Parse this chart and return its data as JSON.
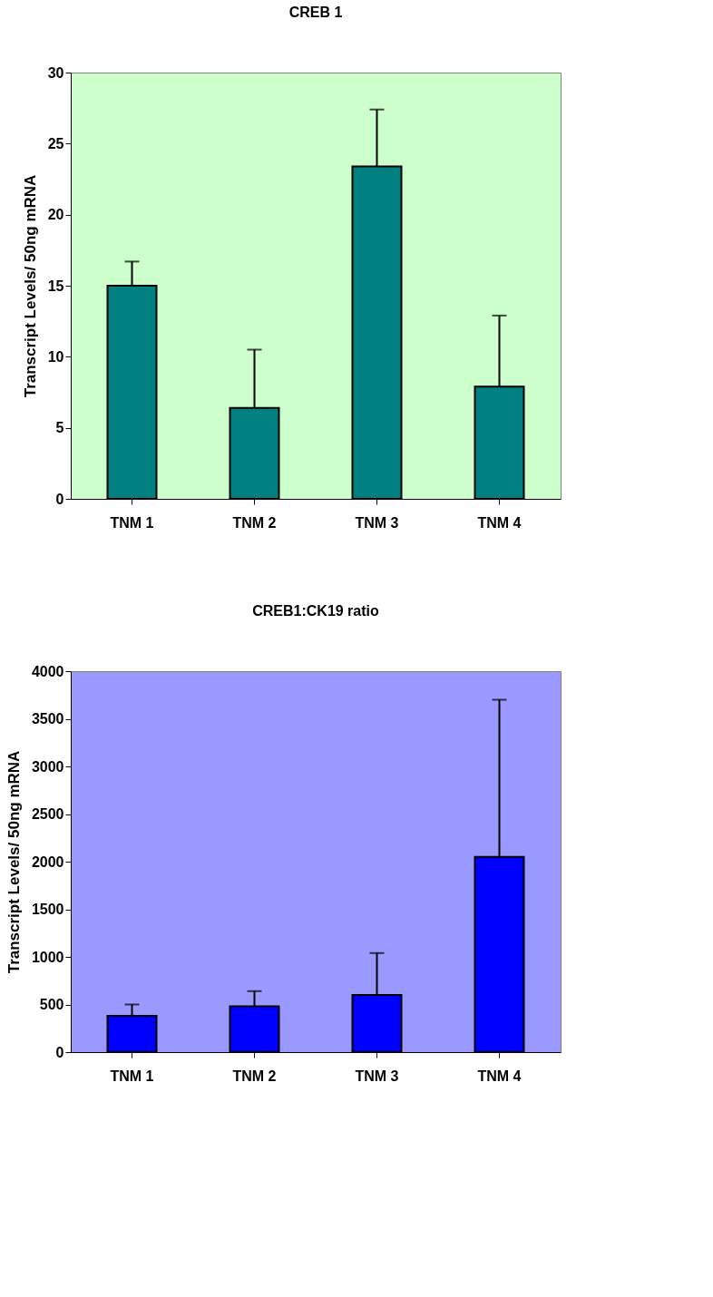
{
  "chart_data": [
    {
      "type": "bar",
      "title": "CREB 1",
      "ylabel": "Transcript Levels/ 50ng mRNA",
      "categories": [
        "TNM 1",
        "TNM 2",
        "TNM 3",
        "TNM 4"
      ],
      "series": [
        {
          "color": "#008080",
          "values": [
            15.0,
            6.4,
            23.4,
            7.9
          ],
          "errors": [
            [
              15.0,
              16.7
            ],
            [
              6.4,
              10.5
            ],
            [
              23.4,
              27.4
            ],
            [
              7.9,
              12.9
            ]
          ]
        }
      ],
      "ylim": [
        0,
        30
      ],
      "yticks": [
        0,
        5,
        10,
        15,
        20,
        25,
        30
      ],
      "grid": false
    },
    {
      "type": "bar",
      "title": "CREB1:CK19 ratio",
      "ylabel": "Transcript Levels/ 50ng mRNA",
      "categories": [
        "TNM 1",
        "TNM 2",
        "TNM 3",
        "TNM 4"
      ],
      "series": [
        {
          "color": "#0000ff",
          "values": [
            380,
            480,
            600,
            2050
          ],
          "errors": [
            [
              380,
              500
            ],
            [
              480,
              640
            ],
            [
              600,
              1040
            ],
            [
              2050,
              3700
            ]
          ]
        }
      ],
      "ylim": [
        0,
        4000
      ],
      "yticks": [
        0,
        500,
        1000,
        1500,
        2000,
        2500,
        3000,
        3500,
        4000
      ],
      "grid": false
    }
  ]
}
